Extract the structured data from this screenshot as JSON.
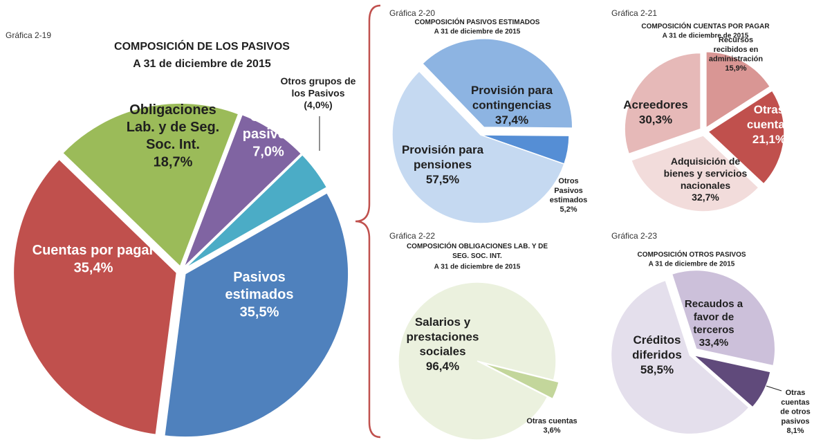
{
  "chart_data": [
    {
      "type": "pie",
      "label": "Gráfica 2-19",
      "title": "COMPOSICIÓN DE LOS PASIVOS",
      "subtitle": "A 31 de diciembre de 2015",
      "categories": [
        "Obligaciones\nLab. y de Seg.\nSoc. Int.",
        "Otros\npasivos",
        "Otros grupos de\nlos Pasivos",
        "Pasivos\nestimados",
        "Cuentas por pagar"
      ],
      "values": [
        18.7,
        7.0,
        4.0,
        35.5,
        35.4
      ],
      "value_labels": [
        "18,7%",
        "7,0%",
        "(4,0%)",
        "35,5%",
        "35,4%"
      ],
      "colors": [
        "#9bbb59",
        "#8064a2",
        "#4bacc6",
        "#4f81bd",
        "#c0504d"
      ]
    },
    {
      "type": "pie",
      "label": "Gráfica 2-20",
      "title": "COMPOSICIÓN PASIVOS ESTIMADOS",
      "subtitle": "A 31 de diciembre de 2015",
      "categories": [
        "Provisión para\ncontingencias",
        "Otros\nPasivos\nestimados",
        "Provisión para\npensiones"
      ],
      "values": [
        37.4,
        5.2,
        57.5
      ],
      "value_labels": [
        "37,4%",
        "5,2%",
        "57,5%"
      ],
      "colors": [
        "#8db4e2",
        "#558ed5",
        "#c5d9f1"
      ]
    },
    {
      "type": "pie",
      "label": "Gráfica 2-21",
      "title": "COMPOSICIÓN  CUENTAS POR PAGAR",
      "subtitle": "A 31 de diciembre de 2015",
      "categories": [
        "Recursos\nrecibidos en\nadministración",
        "Otras\ncuentas",
        "Adquisición de\nbienes y servicios\nnacionales",
        "Acreedores"
      ],
      "values": [
        15.9,
        21.1,
        32.7,
        30.3
      ],
      "value_labels": [
        "15,9%",
        "21,1%",
        "32,7%",
        "30,3%"
      ],
      "colors": [
        "#d99694",
        "#c0504d",
        "#f2dcdb",
        "#e6b9b8"
      ]
    },
    {
      "type": "pie",
      "label": "Gráfica 2-22",
      "title": "COMPOSICIÓN  OBLIGACIONES LAB. Y DE\nSEG. SOC. INT.",
      "subtitle": "A 31 de diciembre de 2015",
      "categories": [
        "Otras cuentas",
        "Salarios y\nprestaciones\nsociales"
      ],
      "values": [
        3.6,
        96.4
      ],
      "value_labels": [
        "3,6%",
        "96,4%"
      ],
      "colors": [
        "#c3d69b",
        "#ebf1de"
      ]
    },
    {
      "type": "pie",
      "label": "Gráfica 2-23",
      "title": "COMPOSICIÓN  OTROS PASIVOS",
      "subtitle": "A 31 de diciembre de 2015",
      "categories": [
        "Recaudos a\nfavor de\nterceros",
        "Otras\ncuentas\nde otros\npasivos",
        "Créditos\ndiferidos"
      ],
      "values": [
        33.4,
        8.1,
        58.5
      ],
      "value_labels": [
        "33,4%",
        "8,1%",
        "58,5%"
      ],
      "colors": [
        "#ccc0da",
        "#604a7b",
        "#e4dfec"
      ]
    }
  ]
}
